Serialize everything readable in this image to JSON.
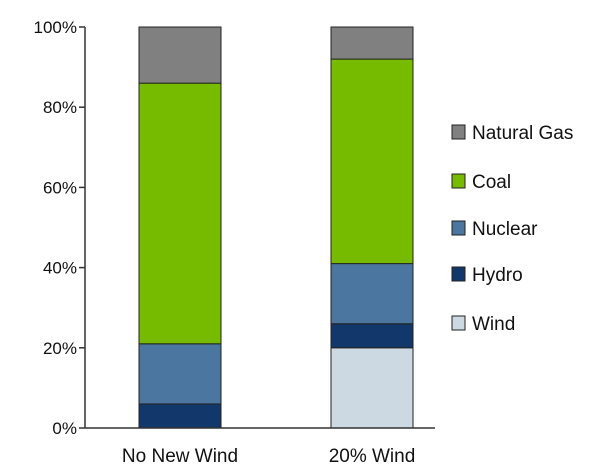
{
  "chart_data": {
    "type": "bar",
    "stacked": true,
    "categories": [
      "No New Wind",
      "20% Wind"
    ],
    "series": [
      {
        "name": "Wind",
        "color": "#ccd9e3",
        "values": [
          0,
          20
        ]
      },
      {
        "name": "Hydro",
        "color": "#12386b",
        "values": [
          6,
          6
        ]
      },
      {
        "name": "Nuclear",
        "color": "#4a76a0",
        "values": [
          15,
          15
        ]
      },
      {
        "name": "Coal",
        "color": "#77bb00",
        "values": [
          65,
          51
        ]
      },
      {
        "name": "Natural Gas",
        "color": "#808080",
        "values": [
          14,
          8
        ]
      }
    ],
    "yticks": [
      "0%",
      "20%",
      "40%",
      "60%",
      "80%",
      "100%"
    ],
    "ylim": [
      0,
      100
    ],
    "legend": [
      "Natural Gas",
      "Coal",
      "Nuclear",
      "Hydro",
      "Wind"
    ],
    "legend_position": "right",
    "grid": false
  }
}
